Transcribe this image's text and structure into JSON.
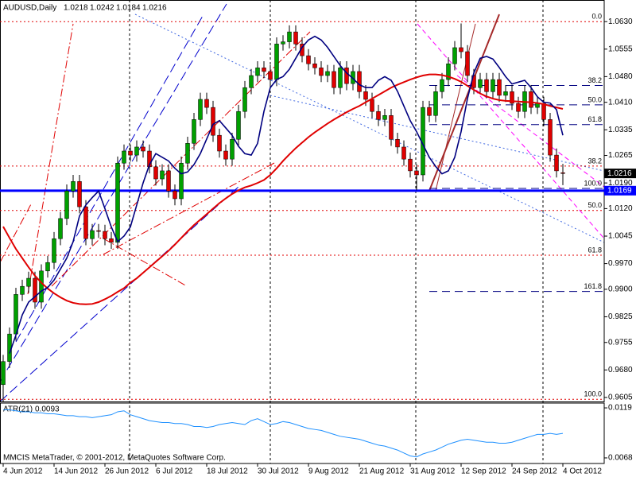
{
  "chart_data": {
    "type": "candlestick",
    "title": "AUDUSD,Daily",
    "categories": [
      "4 Jun 2012",
      null,
      null,
      null,
      null,
      null,
      null,
      null,
      "14 Jun 2012",
      null,
      null,
      null,
      null,
      null,
      null,
      null,
      "26 Jun 2012",
      null,
      null,
      null,
      null,
      null,
      null,
      null,
      "6 Jul 2012",
      null,
      null,
      null,
      null,
      null,
      null,
      null,
      "18 Jul 2012",
      null,
      null,
      null,
      null,
      null,
      null,
      null,
      "30 Jul 2012",
      null,
      null,
      null,
      null,
      null,
      null,
      null,
      "9 Aug 2012",
      null,
      null,
      null,
      null,
      null,
      null,
      null,
      "21 Aug 2012",
      null,
      null,
      null,
      null,
      null,
      null,
      null,
      "31 Aug 2012",
      null,
      null,
      null,
      null,
      null,
      null,
      null,
      "12 Sep 2012",
      null,
      null,
      null,
      null,
      null,
      null,
      null,
      "24 Sep 2012",
      null,
      null,
      null,
      null,
      null,
      null,
      null,
      "4 Oct 2012"
    ],
    "open": [
      0.964,
      0.9703,
      0.9778,
      0.9886,
      0.9908,
      0.993,
      0.9865,
      0.995,
      0.9973,
      1.0038,
      1.0093,
      1.0168,
      1.0194,
      1.0125,
      1.0038,
      1.006,
      1.0058,
      1.0038,
      1.0028,
      1.0244,
      1.0277,
      1.0266,
      1.0288,
      1.0277,
      1.0234,
      1.0201,
      1.0223,
      1.0168,
      1.0147,
      1.0244,
      1.0298,
      1.0363,
      1.0418,
      1.0396,
      1.032,
      1.0277,
      1.0255,
      1.0309,
      1.0385,
      1.045,
      1.0483,
      1.0504,
      1.0494,
      1.0472,
      1.0569,
      1.0575,
      1.0602,
      1.0569,
      1.0537,
      1.0515,
      1.0504,
      1.0483,
      1.0494,
      1.045,
      1.0504,
      1.0461,
      1.0494,
      1.0439,
      1.0418,
      1.0385,
      1.0363,
      1.0374,
      1.0309,
      1.0288,
      1.0255,
      1.0223,
      1.0212,
      1.0396,
      1.0374,
      1.0439,
      1.0472,
      1.0515,
      1.0559,
      1.0548,
      1.0483,
      1.045,
      1.0472,
      1.0439,
      1.0472,
      1.0429,
      1.0439,
      1.0407,
      1.0385,
      1.0439,
      1.0396,
      1.0407,
      1.0363,
      1.0266,
      1.0218
    ],
    "high": [
      0.9721,
      0.9796,
      0.9904,
      0.9926,
      0.9948,
      0.9948,
      0.9968,
      0.9991,
      1.0056,
      1.0111,
      1.0186,
      1.0212,
      1.0212,
      1.0143,
      1.0078,
      1.0078,
      1.0076,
      1.0056,
      1.0262,
      1.0295,
      1.0295,
      1.0306,
      1.0306,
      1.0295,
      1.0252,
      1.0241,
      1.0241,
      1.0186,
      1.0262,
      1.0316,
      1.0381,
      1.0436,
      1.0436,
      1.0414,
      1.0338,
      1.0295,
      1.0327,
      1.0403,
      1.0468,
      1.0501,
      1.0522,
      1.0522,
      1.0512,
      1.0587,
      1.0593,
      1.062,
      1.062,
      1.0587,
      1.0555,
      1.0533,
      1.0522,
      1.0512,
      1.0512,
      1.0522,
      1.0522,
      1.0512,
      1.0512,
      1.0457,
      1.0436,
      1.0403,
      1.0392,
      1.0392,
      1.0327,
      1.0306,
      1.0273,
      1.0241,
      1.0414,
      1.0414,
      1.0457,
      1.049,
      1.0533,
      1.0577,
      1.0625,
      1.0566,
      1.0501,
      1.049,
      1.049,
      1.049,
      1.049,
      1.0457,
      1.0457,
      1.0425,
      1.0457,
      1.0457,
      1.0425,
      1.0425,
      1.0381,
      1.0284,
      1.0242
    ],
    "low": [
      0.9592,
      0.9685,
      0.976,
      0.9868,
      0.989,
      0.9847,
      0.9847,
      0.9932,
      0.9955,
      1.002,
      1.0075,
      1.015,
      1.0107,
      1.002,
      1.002,
      1.004,
      1.002,
      1.001,
      1.001,
      1.0226,
      1.0248,
      1.0248,
      1.0259,
      1.0216,
      1.0183,
      1.0183,
      1.015,
      1.0129,
      1.0129,
      1.0226,
      1.028,
      1.0345,
      1.0378,
      1.0302,
      1.0259,
      1.0237,
      1.0237,
      1.0291,
      1.0367,
      1.0432,
      1.0465,
      1.0476,
      1.0454,
      1.0454,
      1.0551,
      1.0557,
      1.0551,
      1.0519,
      1.0497,
      1.0486,
      1.0465,
      1.0465,
      1.0432,
      1.0432,
      1.0443,
      1.0443,
      1.0421,
      1.04,
      1.0367,
      1.0345,
      1.0345,
      1.0291,
      1.027,
      1.0237,
      1.0205,
      1.017,
      1.0194,
      1.0356,
      1.0356,
      1.0421,
      1.0454,
      1.0497,
      1.053,
      1.0465,
      1.0432,
      1.0432,
      1.0421,
      1.0421,
      1.0411,
      1.0411,
      1.0389,
      1.0367,
      1.0367,
      1.0378,
      1.0378,
      1.0345,
      1.0248,
      1.0205,
      1.0184
    ],
    "close": [
      0.9703,
      0.9778,
      0.9886,
      0.9908,
      0.993,
      0.9865,
      0.995,
      0.9973,
      1.0038,
      1.0093,
      1.0168,
      1.0194,
      1.0125,
      1.0038,
      1.006,
      1.0058,
      1.0038,
      1.0028,
      1.0244,
      1.0277,
      1.0266,
      1.0288,
      1.0277,
      1.0234,
      1.0201,
      1.0223,
      1.0168,
      1.0147,
      1.0244,
      1.0298,
      1.0363,
      1.0418,
      1.0396,
      1.032,
      1.0277,
      1.0255,
      1.0309,
      1.0385,
      1.045,
      1.0483,
      1.0504,
      1.0494,
      1.0472,
      1.0569,
      1.0575,
      1.0602,
      1.0569,
      1.0537,
      1.0515,
      1.0504,
      1.0483,
      1.0494,
      1.045,
      1.0504,
      1.0461,
      1.0494,
      1.0439,
      1.0418,
      1.0385,
      1.0363,
      1.0374,
      1.0309,
      1.0288,
      1.0255,
      1.0223,
      1.0212,
      1.0396,
      1.0374,
      1.0439,
      1.0472,
      1.0515,
      1.0559,
      1.0548,
      1.0483,
      1.045,
      1.0472,
      1.0439,
      1.0472,
      1.0429,
      1.0439,
      1.0407,
      1.0385,
      1.0439,
      1.0396,
      1.0407,
      1.0363,
      1.0266,
      1.0223,
      1.0216
    ],
    "colors": {
      "up": "#00a000",
      "down": "#e00000",
      "wick": "#000000"
    },
    "ylim": [
      0.9594,
      1.0689
    ],
    "yticks": [
      {
        "value": 1.063,
        "label": "1.0630"
      },
      1.0555,
      {
        "value": 1.048,
        "label": "1.0480"
      },
      {
        "value": 1.041,
        "label": "1.0410"
      },
      1.0335,
      1.0265,
      {
        "value": 1.019,
        "label": "1.0190"
      },
      {
        "value": 1.012,
        "label": "1.0120"
      },
      1.0045,
      {
        "value": 0.997,
        "label": "0.9970"
      },
      {
        "value": 0.99,
        "label": "0.9900"
      },
      0.9825,
      0.9755,
      {
        "value": 0.968,
        "label": "0.9680"
      },
      0.9605
    ],
    "grid": false,
    "moving_averages": [
      {
        "type": "line",
        "color": "#e00000",
        "width": 2,
        "values": [
          1.0071,
          1.004,
          1.001,
          0.9985,
          0.996,
          0.9937,
          0.9918,
          0.9902,
          0.9889,
          0.9878,
          0.9869,
          0.9863,
          0.986,
          0.9859,
          0.986,
          0.9865,
          0.9873,
          0.9882,
          0.9893,
          0.9903,
          0.9918,
          0.993,
          0.9945,
          0.996,
          0.9975,
          0.999,
          1.0005,
          1.0022,
          1.004,
          1.0058,
          1.0075,
          1.009,
          1.0105,
          1.012,
          1.0135,
          1.0148,
          1.016,
          1.017,
          1.0178,
          1.0183,
          1.019,
          1.0198,
          1.0212,
          1.023,
          1.025,
          1.0268,
          1.0285,
          1.03,
          1.0315,
          1.0328,
          1.034,
          1.0352,
          1.0363,
          1.0373,
          1.0383,
          1.0392,
          1.04,
          1.041,
          1.042,
          1.043,
          1.044,
          1.045,
          1.0458,
          1.0465,
          1.0472,
          1.0478,
          1.0483,
          1.0486,
          1.0486,
          1.0484,
          1.048,
          1.0474,
          1.0466,
          1.0455,
          1.0444,
          1.0434,
          1.0426,
          1.042,
          1.0416,
          1.0414,
          1.0413,
          1.0412,
          1.0411,
          1.041,
          1.0408,
          1.0405,
          1.04,
          1.0396,
          1.0392
        ]
      },
      {
        "type": "line",
        "color": "#000080",
        "width": 1.6,
        "values": [
          null,
          0.9725,
          0.9775,
          0.983,
          0.9865,
          0.988,
          0.9895,
          0.9905,
          0.9925,
          0.9955,
          0.9985,
          1.003,
          1.01,
          1.013,
          1.015,
          1.0168,
          1.012,
          1.007,
          1.003,
          1.0045,
          1.007,
          1.013,
          1.019,
          1.024,
          1.027,
          1.026,
          1.025,
          1.023,
          1.0215,
          1.022,
          1.024,
          1.027,
          1.031,
          1.035,
          1.036,
          1.034,
          1.032,
          1.029,
          1.027,
          1.0266,
          1.0298,
          1.0385,
          1.045,
          1.0472,
          1.048,
          1.05,
          1.053,
          1.056,
          1.058,
          1.059,
          1.058,
          1.056,
          1.0535,
          1.051,
          1.049,
          1.0475,
          1.0458,
          1.045,
          1.045,
          1.047,
          1.048,
          1.047,
          1.044,
          1.04,
          1.036,
          1.033,
          1.0295,
          1.026,
          1.0235,
          1.0215,
          1.0223,
          1.026,
          1.033,
          1.042,
          1.049,
          1.053,
          1.0535,
          1.0528,
          1.0505,
          1.048,
          1.046,
          1.0465,
          1.047,
          1.045,
          1.0425,
          1.041,
          1.0408,
          1.039,
          1.032
        ]
      }
    ],
    "support": {
      "value": 1.0169,
      "color": "#0000ff"
    },
    "fibonacci": [
      {
        "color": "#e00000",
        "style": "dotted",
        "levels": [
          {
            "value": 1.063,
            "label": "0.0"
          },
          {
            "value": 1.0236,
            "label": "38.2"
          },
          {
            "value": 1.0115,
            "label": "50.0"
          },
          {
            "value": 0.9993,
            "label": "61.8"
          },
          {
            "value": 0.96,
            "label": "100.0"
          }
        ]
      },
      {
        "color": "#000080",
        "style": "dashed",
        "levels": [
          {
            "value": 1.0456,
            "label": "38.2"
          },
          {
            "value": 1.0403,
            "label": "50.0"
          },
          {
            "value": 1.0349,
            "label": "61.8"
          },
          {
            "value": 1.0175,
            "label": "100.0"
          },
          {
            "value": 0.9894,
            "label": "161.8"
          }
        ]
      }
    ],
    "indicator": {
      "type": "line",
      "label": "ATR(21)",
      "color": "#1e90ff",
      "width": 1,
      "ylim": [
        0.00623,
        0.01239
      ],
      "yticks": [
        0.0119,
        0.0068
      ],
      "values": [
        0.0117,
        0.0117,
        0.0116,
        0.0115,
        0.0115,
        0.0114,
        0.0114,
        0.0113,
        0.0113,
        0.0112,
        0.0111,
        0.0111,
        0.011,
        0.011,
        0.0109,
        0.011,
        0.0111,
        0.0112,
        0.0115,
        0.0116,
        0.0112,
        0.011,
        0.0108,
        0.0106,
        0.0105,
        0.0104,
        0.0104,
        0.0103,
        0.0103,
        0.0102,
        0.01,
        0.01,
        0.0099,
        0.01,
        0.0102,
        0.0103,
        0.0104,
        0.0103,
        0.0102,
        0.0106,
        0.0108,
        0.0105,
        0.0102,
        0.0103,
        0.0105,
        0.0104,
        0.0102,
        0.01,
        0.0098,
        0.0097,
        0.0096,
        0.0094,
        0.0092,
        0.009,
        0.0089,
        0.0088,
        0.0087,
        0.0085,
        0.0083,
        0.0081,
        0.008,
        0.0078,
        0.0076,
        0.0073,
        0.007,
        0.0069,
        0.0072,
        0.0074,
        0.0076,
        0.0079,
        0.0082,
        0.0084,
        0.0086,
        0.0087,
        0.0086,
        0.0085,
        0.0084,
        0.0084,
        0.0083,
        0.0083,
        0.0084,
        0.0086,
        0.0088,
        0.009,
        0.0092,
        0.0092,
        0.0093,
        0.0092,
        0.0093
      ]
    },
    "footer": "MMCIS MetaTrader, © 2001-2012, MetaQuotes Software Corp."
  }
}
